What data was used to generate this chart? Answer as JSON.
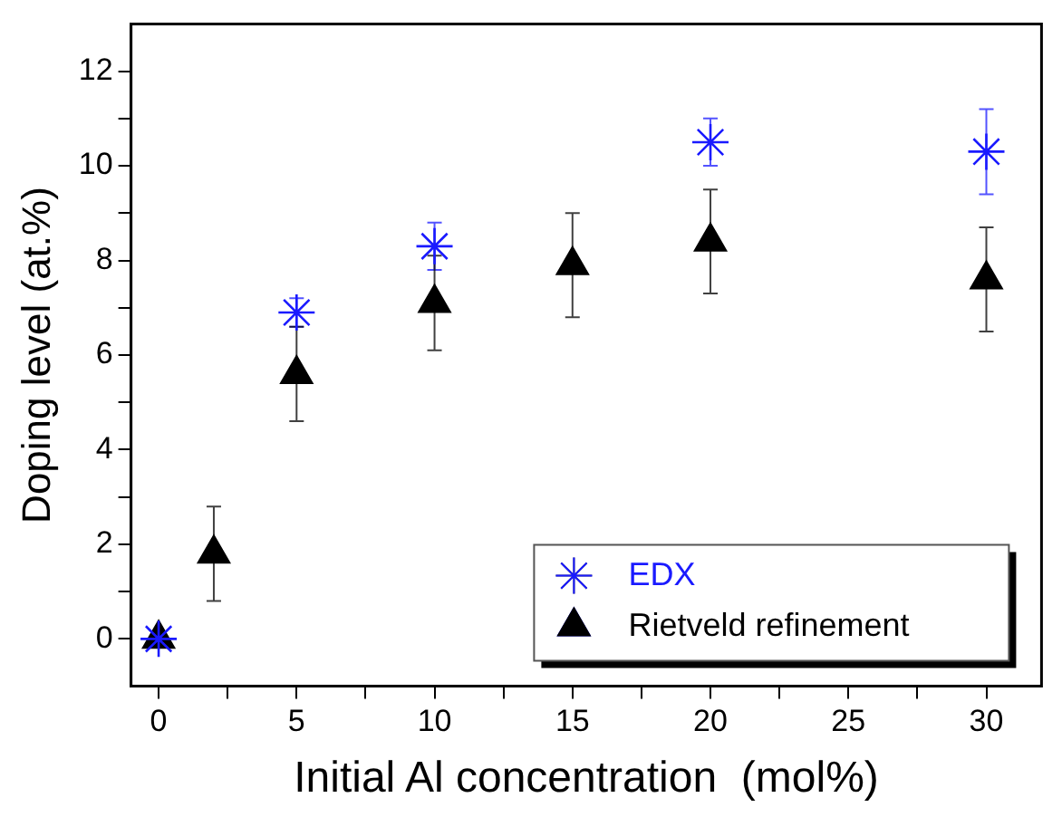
{
  "chart_data": {
    "type": "scatter",
    "xlabel": "Initial Al concentration  (mol%)",
    "ylabel": "Doping level (at.%)",
    "xlim": [
      -1,
      32
    ],
    "ylim": [
      -1,
      13
    ],
    "xticks": [
      0,
      {
        "value": 2.5,
        "label": null
      },
      5,
      {
        "value": 7.5,
        "label": null
      },
      10,
      {
        "value": 12.5,
        "label": null
      },
      15,
      {
        "value": 17.5,
        "label": null
      },
      20,
      {
        "value": 22.5,
        "label": null
      },
      25,
      {
        "value": 27.5,
        "label": null
      },
      30
    ],
    "yticks": [
      0,
      {
        "value": 1,
        "label": null
      },
      2,
      {
        "value": 3,
        "label": null
      },
      4,
      {
        "value": 5,
        "label": null
      },
      6,
      {
        "value": 7,
        "label": null
      },
      8,
      {
        "value": 9,
        "label": null
      },
      10,
      {
        "value": 11,
        "label": null
      },
      12
    ],
    "grid": false,
    "legend": "bottom right",
    "series": [
      {
        "name": "EDX",
        "color": "#1a1aff",
        "marker": "cross",
        "x": [
          0,
          5,
          10,
          20,
          30
        ],
        "values": [
          0,
          6.9,
          8.3,
          10.5,
          10.3
        ],
        "errors": [
          null,
          0.3,
          0.5,
          0.5,
          0.9
        ]
      },
      {
        "name": "Rietveld refinement",
        "color": "#000000",
        "marker": "triangle",
        "x": [
          0,
          2,
          5,
          10,
          15,
          20,
          30
        ],
        "values": [
          0,
          1.8,
          5.6,
          7.1,
          7.9,
          8.4,
          7.6
        ],
        "errors": [
          null,
          1.0,
          1.0,
          1.0,
          1.1,
          1.1,
          1.1
        ]
      }
    ]
  }
}
